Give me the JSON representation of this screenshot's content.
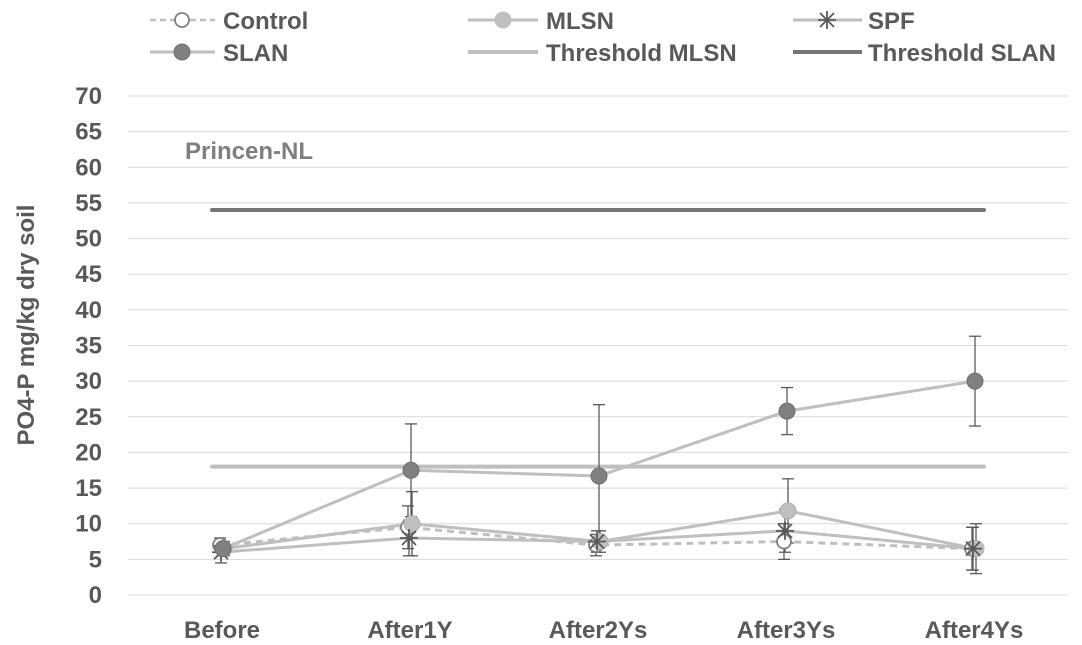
{
  "chart_data": {
    "type": "line",
    "title": "",
    "xlabel": "",
    "ylabel": "PO4-P mg/kg dry soil",
    "annotation": "Princen-NL",
    "categories": [
      "Before",
      "After1Y",
      "After2Ys",
      "After3Ys",
      "After4Ys"
    ],
    "ylim": [
      0,
      70
    ],
    "yticks": [
      0,
      5,
      10,
      15,
      20,
      25,
      30,
      35,
      40,
      45,
      50,
      55,
      60,
      65,
      70
    ],
    "grid": true,
    "legend_position": "top",
    "series": [
      {
        "name": "Control",
        "marker": "open-circle",
        "line": "dashed",
        "color": "#bfbfbf",
        "values": [
          7.0,
          9.5,
          7.0,
          7.5,
          6.5
        ],
        "errors": [
          1.0,
          3.0,
          1.5,
          2.5,
          3.0
        ]
      },
      {
        "name": "MLSN",
        "marker": "filled-circle",
        "line": "solid",
        "color": "#bfbfbf",
        "values": [
          6.5,
          10.0,
          7.5,
          11.8,
          6.5
        ],
        "errors": [
          1.0,
          4.5,
          1.5,
          4.5,
          3.5
        ]
      },
      {
        "name": "SPF",
        "marker": "asterisk",
        "line": "solid",
        "color": "#bfbfbf",
        "values": [
          6.0,
          8.0,
          7.5,
          9.0,
          6.5
        ],
        "errors": [
          1.5,
          2.5,
          1.5,
          3.0,
          3.0
        ]
      },
      {
        "name": "SLAN",
        "marker": "filled-circle-dark",
        "line": "solid",
        "color": "#bfbfbf",
        "marker_color": "#808080",
        "values": [
          6.5,
          17.5,
          16.7,
          25.8,
          30.0
        ],
        "errors": [
          1.0,
          6.5,
          10.0,
          3.3,
          6.3
        ]
      }
    ],
    "thresholds": [
      {
        "name": "Threshold MLSN",
        "value": 18,
        "color": "#bfbfbf"
      },
      {
        "name": "Threshold SLAN",
        "value": 54,
        "color": "#767676"
      }
    ]
  },
  "legend": [
    {
      "label": "Control",
      "style": "dashed-open-circle"
    },
    {
      "label": "MLSN",
      "style": "solid-light-circle"
    },
    {
      "label": "SPF",
      "style": "solid-asterisk"
    },
    {
      "label": "SLAN",
      "style": "solid-dark-circle"
    },
    {
      "label": "Threshold MLSN",
      "style": "thick-light-line"
    },
    {
      "label": "Threshold SLAN",
      "style": "thick-dark-line"
    }
  ],
  "colors": {
    "light_line": "#bfbfbf",
    "dark_line": "#767676",
    "error_bar": "#595959",
    "text": "#595959"
  }
}
